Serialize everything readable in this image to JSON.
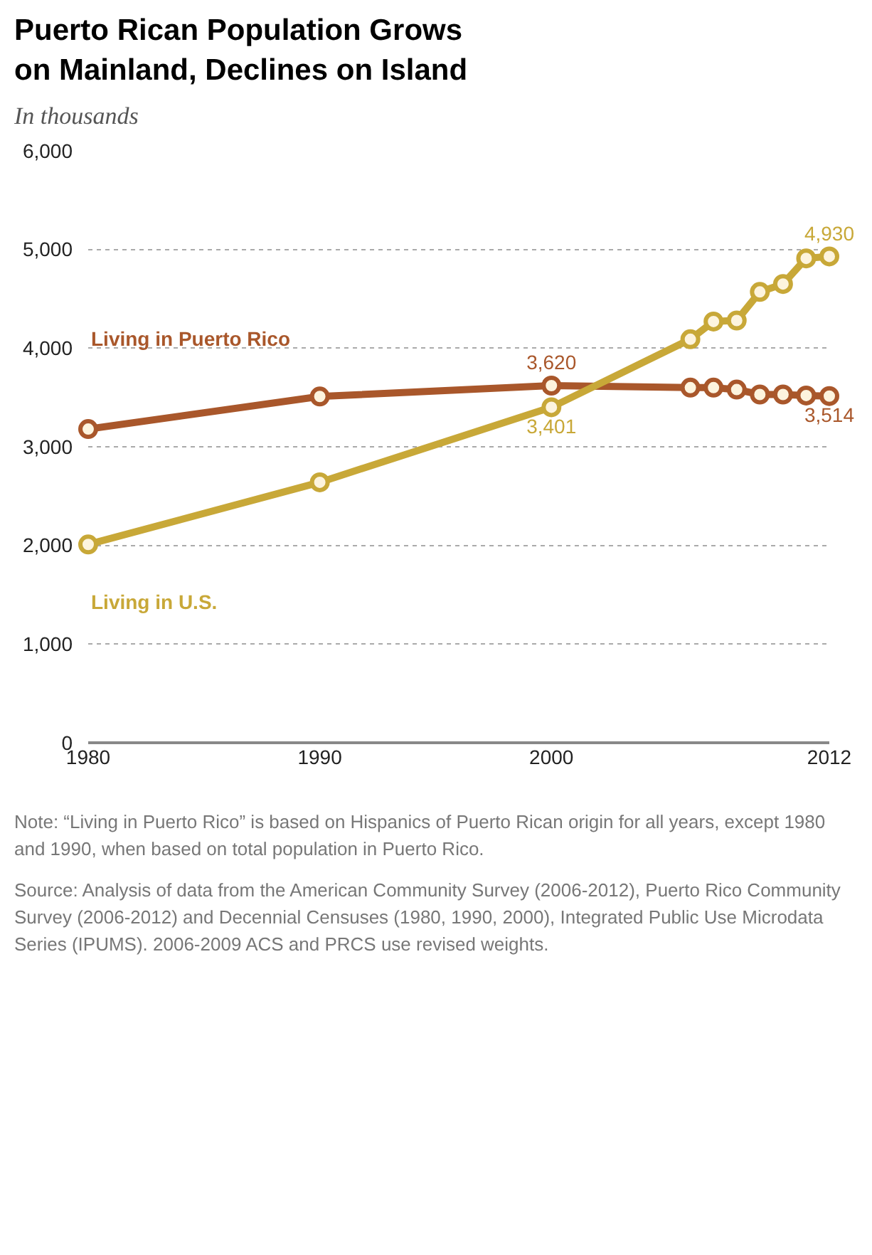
{
  "chart_data": {
    "type": "line",
    "title": "Puerto Rican Population Grows on Mainland, Declines on Island",
    "subtitle": "In thousands",
    "x": [
      1980,
      1990,
      2000,
      2006,
      2007,
      2008,
      2009,
      2010,
      2011,
      2012
    ],
    "series": [
      {
        "name": "Living in Puerto Rico",
        "color": "#a9572b",
        "values": [
          3180,
          3510,
          3620,
          3600,
          3600,
          3580,
          3530,
          3530,
          3520,
          3514
        ],
        "value_labels": [
          null,
          null,
          "3,620",
          null,
          null,
          null,
          null,
          null,
          null,
          "3,514"
        ]
      },
      {
        "name": "Living in U.S.",
        "color": "#c8a838",
        "values": [
          2010,
          2640,
          3401,
          4090,
          4270,
          4280,
          4570,
          4650,
          4910,
          4930
        ],
        "value_labels": [
          null,
          null,
          "3,401",
          null,
          null,
          null,
          null,
          null,
          null,
          "4,930"
        ]
      }
    ],
    "xlim": [
      1980,
      2012
    ],
    "xticks": [
      1980,
      1990,
      2000,
      2012
    ],
    "ylim": [
      0,
      6000
    ],
    "yticks": [
      {
        "value": 0,
        "label": "0"
      },
      {
        "value": 1000,
        "label": "1,000"
      },
      {
        "value": 2000,
        "label": "2,000"
      },
      {
        "value": 3000,
        "label": "3,000"
      },
      {
        "value": 4000,
        "label": "4,000"
      },
      {
        "value": 5000,
        "label": "5,000"
      },
      {
        "value": 6000,
        "label": "6,000"
      }
    ],
    "grid": "y",
    "marker": "circle",
    "line_style": "solid",
    "legend": false,
    "annotations": [
      "Note: “Living in Puerto Rico” is based on Hispanics of Puerto Rican origin for all years, except 1980 and 1990, when based on total population in Puerto Rico.",
      "Source: Analysis of data from the American Community Survey (2006-2012), Puerto Rico Community Survey (2006-2012) and Decennial Censuses (1980, 1990, 2000), Integrated Public Use Microdata Series (IPUMS). 2006-2009 ACS and PRCS use revised weights."
    ]
  }
}
